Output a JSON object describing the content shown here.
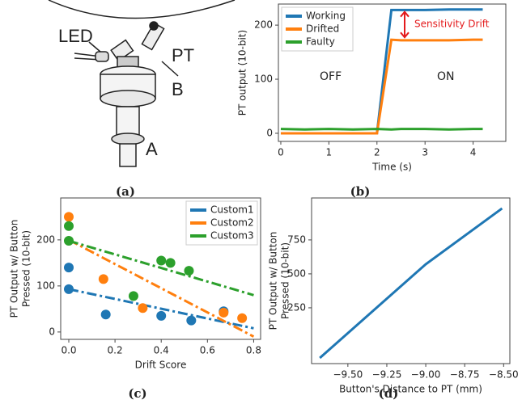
{
  "figure_a": {
    "labels": [
      "LED",
      "PT",
      "B",
      "A"
    ],
    "caption": "(a)"
  },
  "chart_data": [
    {
      "type": "line",
      "caption": "(b)",
      "xlabel": "Time (s)",
      "ylabel": [
        "PT output (10-bit)"
      ],
      "x": [
        0,
        0.5,
        1,
        1.5,
        2.0,
        2.3,
        2.5,
        3,
        3.5,
        4,
        4.2
      ],
      "series": [
        {
          "name": "Working",
          "color": "#1f77b4",
          "values": [
            0,
            0,
            0,
            0,
            0,
            228,
            228,
            228,
            229,
            229,
            229
          ]
        },
        {
          "name": "Drifted",
          "color": "#ff7f0e",
          "values": [
            0,
            0,
            0,
            0,
            0,
            173,
            172,
            172,
            172,
            173,
            173
          ]
        },
        {
          "name": "Faulty",
          "color": "#2ca02c",
          "values": [
            8,
            7,
            8,
            7,
            8,
            7,
            8,
            8,
            7,
            8,
            8
          ]
        }
      ],
      "annotations": [
        "OFF",
        "ON",
        "Sensitivity Drift"
      ],
      "xlim": [
        -0.05,
        4.68
      ],
      "ylim": [
        -15,
        239
      ],
      "xticks": [
        0,
        1,
        2,
        3,
        4
      ],
      "yticks": [
        0,
        100,
        200
      ],
      "legend": "upper left"
    },
    {
      "type": "scatter",
      "caption": "(c)",
      "xlabel": "Drift Score",
      "ylabel": [
        "PT Output w/ Button",
        "Pressed (10-bit)"
      ],
      "series": [
        {
          "name": "Custom1",
          "color": "#1f77b4",
          "x": [
            0,
            0,
            0.16,
            0.4,
            0.53,
            0.67
          ],
          "values": [
            140,
            93,
            38,
            35,
            25,
            45
          ],
          "fit": {
            "x": [
              0,
              0.8
            ],
            "values": [
              93,
              8
            ]
          }
        },
        {
          "name": "Custom2",
          "color": "#ff7f0e",
          "x": [
            0,
            0.15,
            0.32,
            0.67,
            0.75
          ],
          "values": [
            250,
            115,
            52,
            42,
            30
          ],
          "fit": {
            "x": [
              0,
              0.8
            ],
            "values": [
              200,
              -10
            ]
          }
        },
        {
          "name": "Custom3",
          "color": "#2ca02c",
          "x": [
            0,
            0,
            0.28,
            0.4,
            0.44,
            0.52
          ],
          "values": [
            230,
            198,
            78,
            155,
            150,
            133
          ],
          "fit": {
            "x": [
              0,
              0.8
            ],
            "values": [
              198,
              80
            ]
          }
        }
      ],
      "xlim": [
        -0.035,
        0.83
      ],
      "ylim": [
        -16,
        291
      ],
      "xticks": [
        {
          "value": 0,
          "label": "0.0"
        },
        {
          "value": 0.2,
          "label": "0.2"
        },
        {
          "value": 0.4,
          "label": "0.4"
        },
        {
          "value": 0.6,
          "label": "0.6"
        },
        {
          "value": 0.8,
          "label": "0.8"
        }
      ],
      "yticks": [
        0,
        100,
        200
      ],
      "legend": "upper right"
    },
    {
      "type": "line",
      "caption": "(d)",
      "xlabel": "Button's Distance to PT (mm)",
      "ylabel": [
        "PT Output w/ Button",
        "Pressed (10-bit)"
      ],
      "x": [
        -9.68,
        -9.0,
        -8.51
      ],
      "series": [
        {
          "color": "#1f77b4",
          "values": [
            -119,
            571,
            982
          ]
        }
      ],
      "xlim": [
        -9.733,
        -8.46
      ],
      "ylim": [
        -161,
        1059
      ],
      "xticks": [
        {
          "value": -9.5,
          "label": "−9.50"
        },
        {
          "value": -9.25,
          "label": "−9.25"
        },
        {
          "value": -9.0,
          "label": "−9.00"
        },
        {
          "value": -8.75,
          "label": "−8.75"
        },
        {
          "value": -8.5,
          "label": "−8.50"
        }
      ],
      "yticks": [
        250,
        500,
        750
      ]
    }
  ]
}
